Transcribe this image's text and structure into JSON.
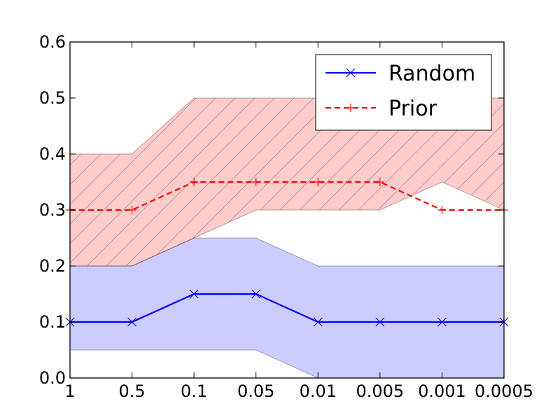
{
  "chart_data": {
    "type": "line",
    "categories": [
      "1",
      "0.5",
      "0.1",
      "0.05",
      "0.01",
      "0.005",
      "0.001",
      "0.0005"
    ],
    "ylim": [
      0,
      0.6
    ],
    "yticks": [
      "0.0",
      "0.1",
      "0.2",
      "0.3",
      "0.4",
      "0.5",
      "0.6"
    ],
    "title": "",
    "xlabel": "",
    "ylabel": "",
    "grid": false,
    "legend_position": "top-right",
    "series": [
      {
        "name": "Random",
        "values": [
          0.1,
          0.1,
          0.15,
          0.15,
          0.1,
          0.1,
          0.1,
          0.1
        ],
        "lower": [
          0.05,
          0.05,
          0.05,
          0.05,
          0.0,
          0.0,
          0.0,
          0.0
        ],
        "upper": [
          0.2,
          0.2,
          0.25,
          0.25,
          0.2,
          0.2,
          0.2,
          0.2
        ],
        "color": "#0000ff",
        "band_color": "#0000ff",
        "line_style": "solid",
        "marker": "x"
      },
      {
        "name": "Prior",
        "values": [
          0.3,
          0.3,
          0.35,
          0.35,
          0.35,
          0.35,
          0.3,
          0.3
        ],
        "lower": [
          0.2,
          0.2,
          0.25,
          0.3,
          0.3,
          0.3,
          0.35,
          0.3
        ],
        "upper": [
          0.4,
          0.4,
          0.5,
          0.5,
          0.5,
          0.5,
          0.5,
          0.5
        ],
        "color": "#ff0000",
        "band_color": "#ff0000",
        "line_style": "dashed",
        "marker": "+",
        "band_hatch": "diagonal"
      }
    ]
  }
}
